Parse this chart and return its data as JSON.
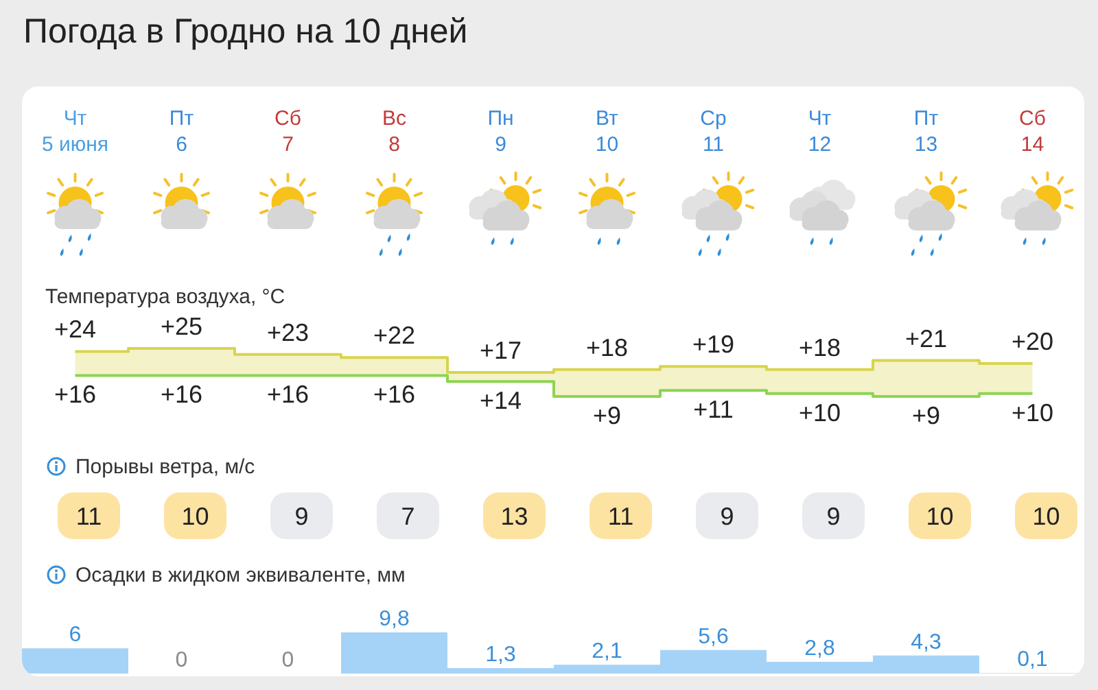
{
  "chart_data": [
    {
      "type": "step",
      "title": "Погода в Гродно на 10 дней",
      "subtitle": "Температура воздуха, °C",
      "categories": [
        "Чт\n5 июня",
        "Пт\n6",
        "Сб\n7",
        "Вс\n8",
        "Пн\n9",
        "Вт\n10",
        "Ср\n11",
        "Чт\n12",
        "Пт\n13",
        "Сб\n14"
      ],
      "tick_labels": "x",
      "series": [
        {
          "color": "#d8d44c",
          "values": [
            24,
            25,
            23,
            22,
            17,
            18,
            19,
            18,
            21,
            20
          ],
          "value_labels": [
            "+24",
            "+25",
            "+23",
            "+22",
            "+17",
            "+18",
            "+19",
            "+18",
            "+21",
            "+20"
          ],
          "lower": [
            16,
            16,
            16,
            16,
            14,
            9,
            11,
            10,
            9,
            10
          ],
          "upper": [
            24,
            25,
            23,
            22,
            17,
            18,
            19,
            18,
            21,
            20
          ]
        },
        {
          "color": "#8cd450",
          "values": [
            16,
            16,
            16,
            16,
            14,
            9,
            11,
            10,
            9,
            10
          ],
          "value_labels": [
            "+16",
            "+16",
            "+16",
            "+16",
            "+14",
            "+9",
            "+11",
            "+10",
            "+9",
            "+10"
          ]
        }
      ]
    },
    {
      "type": "heatmap",
      "title": "Порывы ветра, м/с",
      "categories": [
        null,
        null,
        null,
        null,
        null,
        null,
        null,
        null,
        null,
        null
      ],
      "y_categories": [
        null
      ],
      "cells": [
        [
          11,
          10,
          9,
          7,
          13,
          11,
          9,
          9,
          10,
          10
        ]
      ],
      "cell_labels": [
        [
          "11",
          "10",
          "9",
          "7",
          "13",
          "11",
          "9",
          "9",
          "10",
          "10"
        ]
      ]
    },
    {
      "type": "bar",
      "title": "Осадки в жидком эквиваленте, мм",
      "categories": [
        null,
        null,
        null,
        null,
        null,
        null,
        null,
        null,
        null,
        null
      ],
      "color": "#a5d3f7",
      "values": [
        6,
        0,
        0,
        9.8,
        1.3,
        2.1,
        5.6,
        2.8,
        4.3,
        0.1
      ],
      "value_labels": [
        "6",
        "0",
        "0",
        "9,8",
        "1,3",
        "2,1",
        "5,6",
        "2,8",
        "4,3",
        "0,1"
      ]
    }
  ]
}
